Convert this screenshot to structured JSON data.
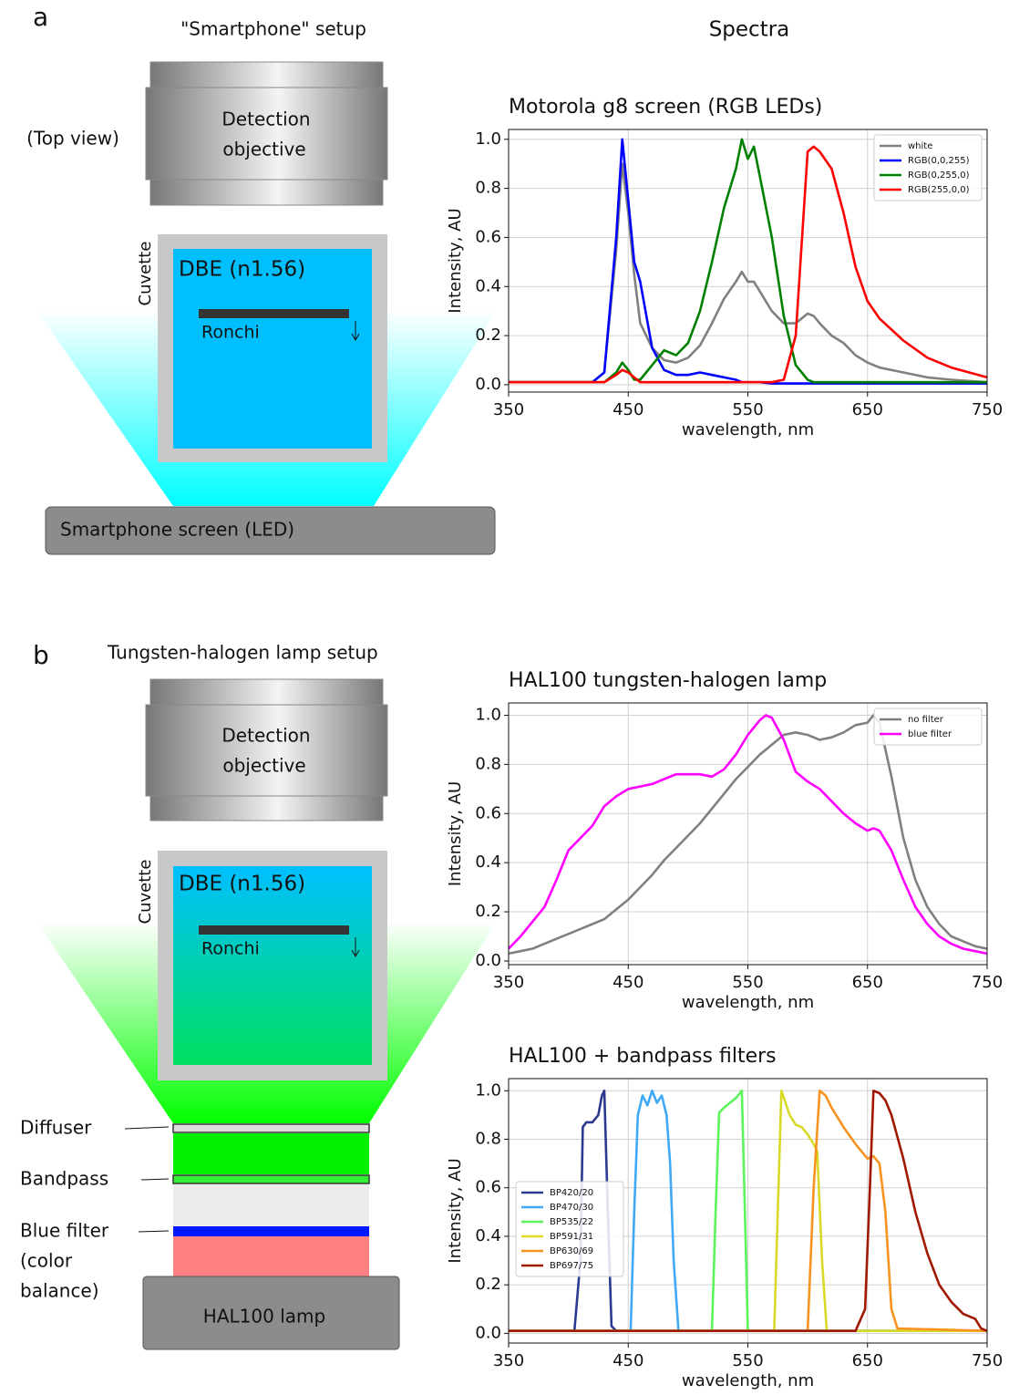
{
  "panel_a": {
    "letter": "a",
    "title": "\"Smartphone\" setup",
    "view": "(Top view)",
    "objective_lines": [
      "Detection",
      "objective"
    ],
    "cuvette": "Cuvette",
    "medium": "DBE (n1.56)",
    "ronchi": "Ronchi",
    "source": "Smartphone screen (LED)"
  },
  "spectra_title": "Spectra",
  "panel_b": {
    "letter": "b",
    "title": "Tungsten-halogen lamp setup",
    "objective_lines": [
      "Detection",
      "objective"
    ],
    "cuvette": "Cuvette",
    "medium": "DBE (n1.56)",
    "ronchi": "Ronchi",
    "diffuser": "Diffuser",
    "bandpass": "Bandpass",
    "blue_filter_lines": [
      "Blue filter",
      "(color",
      "balance)"
    ],
    "source": "HAL100 lamp"
  },
  "chart_data": [
    {
      "type": "line",
      "title": "Motorola g8 screen (RGB LEDs)",
      "xlabel": "wavelength, nm",
      "ylabel": "Intensity, AU",
      "grid": true,
      "legend": "upper right",
      "xlim": [
        350,
        750
      ],
      "xticks": [
        350,
        450,
        550,
        650,
        750
      ],
      "ylim": [
        -0.03,
        1.04
      ],
      "yticks": [
        {
          "value": 0,
          "label": "0.0"
        },
        0.2,
        0.4,
        0.6,
        0.8,
        {
          "value": 1,
          "label": "1.0"
        }
      ],
      "x": [
        350,
        360,
        370,
        380,
        390,
        400,
        410,
        420,
        430,
        440,
        445,
        450,
        455,
        460,
        470,
        480,
        490,
        500,
        510,
        520,
        530,
        540,
        545,
        550,
        555,
        560,
        570,
        580,
        590,
        600,
        605,
        610,
        620,
        630,
        640,
        650,
        660,
        680,
        700,
        720,
        750
      ],
      "series": [
        {
          "name": "white",
          "color": "#808080",
          "values": [
            0.01,
            0.01,
            0.01,
            0.01,
            0.01,
            0.01,
            0.01,
            0.01,
            0.05,
            0.55,
            0.9,
            0.7,
            0.45,
            0.25,
            0.15,
            0.1,
            0.09,
            0.11,
            0.16,
            0.25,
            0.35,
            0.42,
            0.46,
            0.42,
            0.42,
            0.38,
            0.3,
            0.25,
            0.25,
            0.29,
            0.28,
            0.25,
            0.2,
            0.17,
            0.12,
            0.09,
            0.07,
            0.05,
            0.03,
            0.02,
            0.01
          ]
        },
        {
          "name": "RGB(0,0,255)",
          "color": "#0000ff",
          "values": [
            0.01,
            0.01,
            0.01,
            0.01,
            0.01,
            0.01,
            0.01,
            0.01,
            0.05,
            0.6,
            1.0,
            0.75,
            0.5,
            0.42,
            0.15,
            0.06,
            0.04,
            0.04,
            0.05,
            0.04,
            0.03,
            0.02,
            0.01,
            0.01,
            0.01,
            0.01,
            0.005,
            0.005,
            0.005,
            0.005,
            0.005,
            0.005,
            0.005,
            0.005,
            0.005,
            0.005,
            0.005,
            0.005,
            0.005,
            0.005,
            0.005
          ]
        },
        {
          "name": "RGB(0,255,0)",
          "color": "#008000",
          "values": [
            0.01,
            0.01,
            0.01,
            0.01,
            0.01,
            0.01,
            0.01,
            0.01,
            0.01,
            0.05,
            0.09,
            0.06,
            0.02,
            0.02,
            0.08,
            0.14,
            0.12,
            0.17,
            0.3,
            0.5,
            0.72,
            0.88,
            1.0,
            0.92,
            0.97,
            0.85,
            0.6,
            0.28,
            0.08,
            0.02,
            0.01,
            0.01,
            0.01,
            0.01,
            0.01,
            0.01,
            0.01,
            0.01,
            0.01,
            0.01,
            0.01
          ]
        },
        {
          "name": "RGB(255,0,0)",
          "color": "#ff0000",
          "values": [
            0.01,
            0.01,
            0.01,
            0.01,
            0.01,
            0.01,
            0.01,
            0.01,
            0.01,
            0.04,
            0.06,
            0.05,
            0.03,
            0.01,
            0.01,
            0.01,
            0.01,
            0.01,
            0.01,
            0.01,
            0.01,
            0.01,
            0.01,
            0.01,
            0.01,
            0.01,
            0.01,
            0.02,
            0.2,
            0.95,
            0.97,
            0.95,
            0.88,
            0.7,
            0.48,
            0.34,
            0.27,
            0.18,
            0.11,
            0.07,
            0.03
          ]
        }
      ]
    },
    {
      "type": "line",
      "title": "HAL100 tungsten-halogen lamp",
      "xlabel": "wavelength, nm",
      "ylabel": "Intensity, AU",
      "grid": true,
      "legend": "upper right",
      "xlim": [
        350,
        750
      ],
      "xticks": [
        350,
        450,
        550,
        650,
        750
      ],
      "ylim": [
        -0.015,
        1.05
      ],
      "yticks": [
        {
          "value": 0,
          "label": "0.0"
        },
        0.2,
        0.4,
        0.6,
        0.8,
        {
          "value": 1,
          "label": "1.0"
        }
      ],
      "x": [
        350,
        360,
        370,
        380,
        390,
        400,
        410,
        420,
        430,
        440,
        450,
        460,
        470,
        480,
        490,
        500,
        510,
        520,
        530,
        540,
        550,
        560,
        565,
        570,
        580,
        590,
        600,
        610,
        620,
        630,
        640,
        650,
        655,
        660,
        670,
        680,
        690,
        700,
        710,
        720,
        730,
        740,
        750
      ],
      "series": [
        {
          "name": "no filter",
          "color": "#808080",
          "values": [
            0.03,
            0.04,
            0.05,
            0.07,
            0.09,
            0.11,
            0.13,
            0.15,
            0.17,
            0.21,
            0.25,
            0.3,
            0.35,
            0.41,
            0.46,
            0.51,
            0.56,
            0.62,
            0.68,
            0.74,
            0.79,
            0.84,
            0.86,
            0.88,
            0.92,
            0.93,
            0.92,
            0.9,
            0.91,
            0.93,
            0.96,
            0.97,
            1.0,
            0.97,
            0.75,
            0.5,
            0.33,
            0.22,
            0.15,
            0.1,
            0.08,
            0.06,
            0.05
          ]
        },
        {
          "name": "blue filter",
          "color": "#ff00ff",
          "values": [
            0.05,
            0.1,
            0.16,
            0.22,
            0.33,
            0.45,
            0.5,
            0.55,
            0.63,
            0.67,
            0.7,
            0.71,
            0.72,
            0.74,
            0.76,
            0.76,
            0.76,
            0.75,
            0.78,
            0.84,
            0.92,
            0.98,
            1.0,
            0.99,
            0.9,
            0.77,
            0.73,
            0.7,
            0.65,
            0.6,
            0.56,
            0.53,
            0.54,
            0.53,
            0.45,
            0.33,
            0.22,
            0.15,
            0.1,
            0.07,
            0.05,
            0.04,
            0.03
          ]
        }
      ]
    },
    {
      "type": "line",
      "title": "HAL100 + bandpass filters",
      "xlabel": "wavelength, nm",
      "ylabel": "Intensity, AU",
      "grid": true,
      "legend": "center left",
      "xlim": [
        350,
        750
      ],
      "xticks": [
        350,
        450,
        550,
        650,
        750
      ],
      "ylim": [
        -0.04,
        1.05
      ],
      "yticks": [
        {
          "value": 0,
          "label": "0.0"
        },
        0.2,
        0.4,
        0.6,
        0.8,
        {
          "value": 1,
          "label": "1.0"
        }
      ],
      "series": [
        {
          "name": "BP420/20",
          "color": "#2b3990",
          "x": [
            350,
            405,
            410,
            412,
            415,
            420,
            425,
            428,
            430,
            433,
            436,
            440,
            750
          ],
          "values": [
            0.01,
            0.01,
            0.3,
            0.85,
            0.87,
            0.87,
            0.9,
            0.98,
            1.0,
            0.5,
            0.03,
            0.01,
            0.01
          ]
        },
        {
          "name": "BP470/30",
          "color": "#3fa9f5",
          "x": [
            350,
            452,
            455,
            458,
            462,
            466,
            470,
            474,
            478,
            482,
            485,
            488,
            492,
            750
          ],
          "values": [
            0.01,
            0.01,
            0.5,
            0.9,
            0.98,
            0.94,
            1.0,
            0.95,
            0.98,
            0.9,
            0.7,
            0.3,
            0.01,
            0.01
          ]
        },
        {
          "name": "BP535/22",
          "color": "#5cf55c",
          "x": [
            350,
            520,
            523,
            526,
            530,
            535,
            540,
            545,
            547,
            550,
            750
          ],
          "values": [
            0.01,
            0.01,
            0.5,
            0.91,
            0.93,
            0.95,
            0.97,
            1.0,
            0.6,
            0.01,
            0.01
          ]
        },
        {
          "name": "BP591/31",
          "color": "#d9d928",
          "x": [
            350,
            572,
            575,
            578,
            585,
            590,
            595,
            600,
            605,
            608,
            612,
            616,
            750
          ],
          "values": [
            0.01,
            0.01,
            0.5,
            1.0,
            0.9,
            0.86,
            0.85,
            0.82,
            0.78,
            0.75,
            0.3,
            0.01,
            0.01
          ]
        },
        {
          "name": "BP630/69",
          "color": "#f7931e",
          "x": [
            350,
            600,
            605,
            610,
            615,
            620,
            630,
            640,
            650,
            655,
            660,
            665,
            670,
            675,
            750
          ],
          "values": [
            0.01,
            0.01,
            0.6,
            1.0,
            0.98,
            0.93,
            0.85,
            0.78,
            0.72,
            0.73,
            0.7,
            0.5,
            0.1,
            0.02,
            0.01
          ]
        },
        {
          "name": "BP697/75",
          "color": "#a01800",
          "x": [
            350,
            640,
            648,
            652,
            655,
            660,
            665,
            670,
            680,
            690,
            700,
            710,
            720,
            730,
            740,
            745,
            750
          ],
          "values": [
            0.01,
            0.01,
            0.1,
            0.6,
            1.0,
            0.99,
            0.96,
            0.9,
            0.72,
            0.5,
            0.33,
            0.2,
            0.13,
            0.08,
            0.06,
            0.02,
            0.01
          ]
        }
      ]
    }
  ]
}
